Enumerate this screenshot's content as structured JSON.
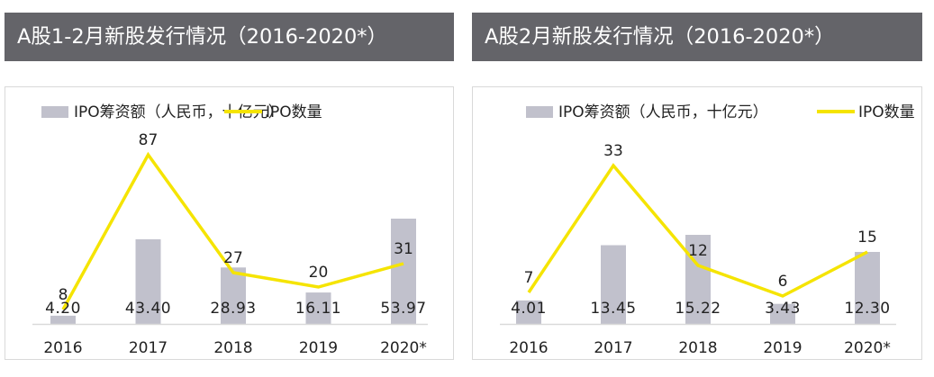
{
  "panels": [
    {
      "title": "A股1-2月新股发行情况（2016-2020*）"
    },
    {
      "title": "A股2月新股发行情况（2016-2020*）"
    }
  ],
  "colors": {
    "header_bg": "#646469",
    "bar": "#c1c1cc",
    "line": "#f5e400",
    "axis": "#d9d9d9",
    "text": "#222222"
  },
  "chart_data": [
    {
      "type": "bar+line",
      "categories": [
        "2016",
        "2017",
        "2018",
        "2019",
        "2020*"
      ],
      "series": [
        {
          "name": "IPO筹资额（人民币，十亿元）",
          "type": "bar",
          "values": [
            4.2,
            43.4,
            28.93,
            16.11,
            53.97
          ],
          "labels": [
            "4.20",
            "43.40",
            "28.93",
            "16.11",
            "53.97"
          ]
        },
        {
          "name": "IPO数量",
          "type": "line",
          "values": [
            8,
            87,
            27,
            20,
            31
          ],
          "labels": [
            "8",
            "87",
            "27",
            "20",
            "31"
          ]
        }
      ],
      "legend": "top",
      "grid": false
    },
    {
      "type": "bar+line",
      "categories": [
        "2016",
        "2017",
        "2018",
        "2019",
        "2020*"
      ],
      "series": [
        {
          "name": "IPO筹资额（人民币，十亿元）",
          "type": "bar",
          "values": [
            4.01,
            13.45,
            15.22,
            3.43,
            12.3
          ],
          "labels": [
            "4.01",
            "13.45",
            "15.22",
            "3.43",
            "12.30"
          ]
        },
        {
          "name": "IPO数量",
          "type": "line",
          "values": [
            7,
            33,
            12,
            6,
            15
          ],
          "labels": [
            "7",
            "33",
            "12",
            "6",
            "15"
          ]
        }
      ],
      "legend": "top",
      "grid": false
    }
  ]
}
